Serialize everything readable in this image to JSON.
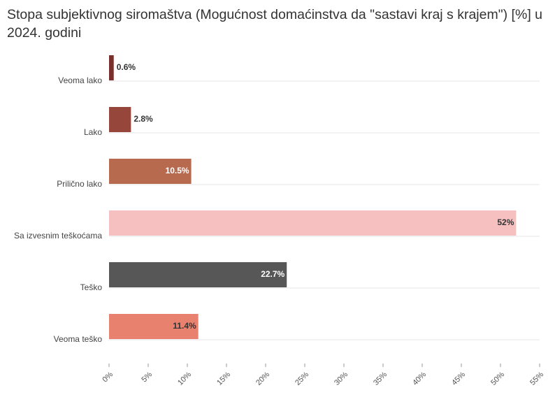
{
  "chart_data": {
    "type": "hbar",
    "title": "Stopa subjektivnog siromaštva (Mogućnost domaćinstva da \"sastavi kraj s krajem\") [%] u 2024. godini",
    "categories": [
      "Veoma lako",
      "Lako",
      "Prilično lako",
      "Sa izvesnim teškoćama",
      "Teško",
      "Veoma teško"
    ],
    "values": [
      0.6,
      2.8,
      10.5,
      52,
      22.7,
      11.4
    ],
    "value_labels": [
      "0.6%",
      "2.8%",
      "10.5%",
      "52%",
      "22.7%",
      "11.4%"
    ],
    "colors": [
      "#7b2f2a",
      "#96463b",
      "#b86a4e",
      "#f5c0bf",
      "#575757",
      "#e8826f"
    ],
    "xlim": [
      0,
      55
    ],
    "xticks": [
      {
        "value": 0,
        "label": "0%"
      },
      {
        "value": 5,
        "label": "5%"
      },
      {
        "value": 10,
        "label": "10%"
      },
      {
        "value": 15,
        "label": "15%"
      },
      {
        "value": 20,
        "label": "20%"
      },
      {
        "value": 25,
        "label": "25%"
      },
      {
        "value": 30,
        "label": "30%"
      },
      {
        "value": 35,
        "label": "35%"
      },
      {
        "value": 40,
        "label": "40%"
      },
      {
        "value": 45,
        "label": "45%"
      },
      {
        "value": 50,
        "label": "50%"
      },
      {
        "value": 55,
        "label": "55%"
      }
    ]
  }
}
